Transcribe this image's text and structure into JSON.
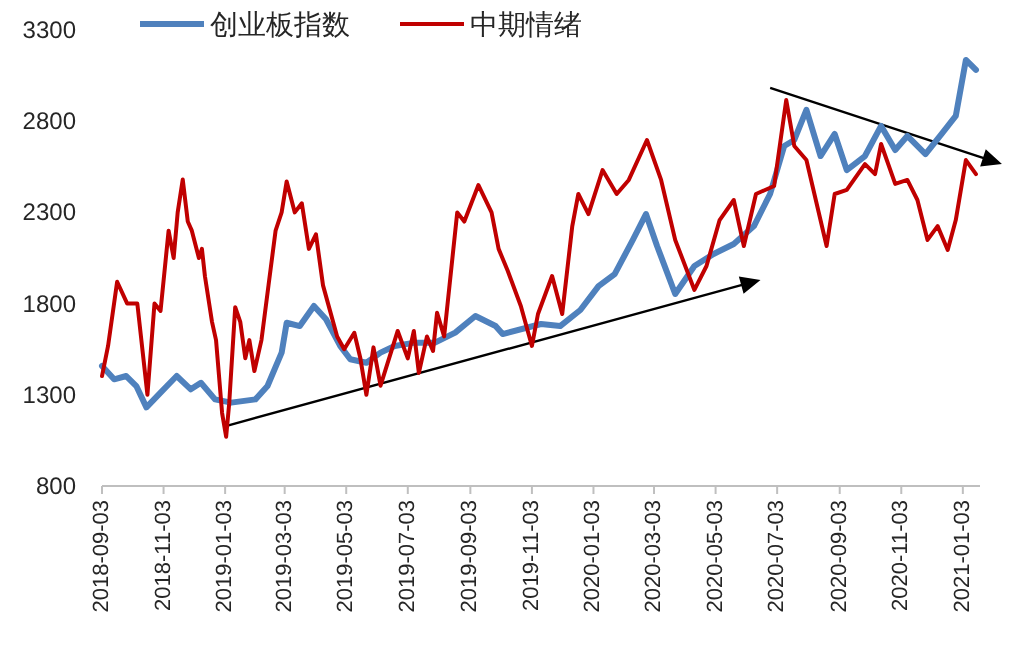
{
  "chart_data": {
    "type": "line",
    "legend": "top",
    "grid": false,
    "marker": "none",
    "line_style": "solid",
    "xlim": [
      "2018-09-03",
      "2021-01-20"
    ],
    "ylim": [
      800,
      3300
    ],
    "yticks": [
      800,
      1300,
      1800,
      2300,
      2800,
      3300
    ],
    "xticks": [
      "2018-09-03",
      "2018-11-03",
      "2019-01-03",
      "2019-03-03",
      "2019-05-03",
      "2019-07-03",
      "2019-09-03",
      "2019-11-03",
      "2020-01-03",
      "2020-03-03",
      "2020-05-03",
      "2020-07-03",
      "2020-09-03",
      "2020-11-03",
      "2021-01-03"
    ],
    "series": [
      {
        "name": "创业板指数",
        "color": "#4f81bd",
        "x": [
          "2018-09-03",
          "2018-09-15",
          "2018-09-27",
          "2018-10-07",
          "2018-10-17",
          "2018-10-31",
          "2018-11-16",
          "2018-11-30",
          "2018-12-10",
          "2018-12-24",
          "2019-01-09",
          "2019-02-02",
          "2019-02-14",
          "2019-02-28",
          "2019-03-05",
          "2019-03-18",
          "2019-04-01",
          "2019-04-13",
          "2019-04-27",
          "2019-05-07",
          "2019-05-23",
          "2019-06-06",
          "2019-06-20",
          "2019-07-10",
          "2019-07-30",
          "2019-08-19",
          "2019-09-08",
          "2019-09-28",
          "2019-10-05",
          "2019-11-12",
          "2019-12-01",
          "2019-12-21",
          "2020-01-08",
          "2020-01-24",
          "2020-02-11",
          "2020-02-24",
          "2020-03-06",
          "2020-03-24",
          "2020-04-12",
          "2020-05-01",
          "2020-05-21",
          "2020-06-10",
          "2020-06-26",
          "2020-07-10",
          "2020-07-20",
          "2020-08-01",
          "2020-08-15",
          "2020-08-29",
          "2020-09-10",
          "2020-09-28",
          "2020-10-14",
          "2020-10-28",
          "2020-11-09",
          "2020-11-27",
          "2020-12-13",
          "2020-12-27",
          "2021-01-06",
          "2021-01-16"
        ],
        "values": [
          1458,
          1385,
          1403,
          1348,
          1231,
          1312,
          1403,
          1330,
          1366,
          1275,
          1257,
          1275,
          1348,
          1531,
          1695,
          1677,
          1787,
          1714,
          1568,
          1495,
          1476,
          1531,
          1568,
          1586,
          1586,
          1641,
          1732,
          1677,
          1633,
          1688,
          1677,
          1765,
          1896,
          1962,
          2149,
          2291,
          2116,
          1853,
          2006,
          2072,
          2127,
          2225,
          2401,
          2664,
          2697,
          2862,
          2609,
          2730,
          2532,
          2609,
          2774,
          2642,
          2719,
          2620,
          2730,
          2829,
          3136,
          3081
        ]
      },
      {
        "name": "中期情绪",
        "color": "#c00000",
        "x": [
          "2018-09-03",
          "2018-09-09",
          "2018-09-18",
          "2018-09-28",
          "2018-10-08",
          "2018-10-18",
          "2018-10-25",
          "2018-10-31",
          "2018-11-08",
          "2018-11-13",
          "2018-11-17",
          "2018-11-22",
          "2018-11-27",
          "2018-12-01",
          "2018-12-08",
          "2018-12-11",
          "2018-12-14",
          "2018-12-21",
          "2018-12-25",
          "2018-12-31",
          "2019-01-04",
          "2019-01-07",
          "2019-01-13",
          "2019-01-18",
          "2019-01-23",
          "2019-01-27",
          "2019-02-01",
          "2019-02-08",
          "2019-02-15",
          "2019-02-22",
          "2019-02-28",
          "2019-03-05",
          "2019-03-13",
          "2019-03-20",
          "2019-03-27",
          "2019-04-03",
          "2019-04-10",
          "2019-04-15",
          "2019-04-24",
          "2019-05-01",
          "2019-05-11",
          "2019-05-17",
          "2019-05-23",
          "2019-05-30",
          "2019-06-06",
          "2019-06-23",
          "2019-07-03",
          "2019-07-09",
          "2019-07-14",
          "2019-07-22",
          "2019-07-28",
          "2019-08-01",
          "2019-08-08",
          "2019-08-21",
          "2019-08-28",
          "2019-09-11",
          "2019-09-24",
          "2019-10-01",
          "2019-10-10",
          "2019-10-23",
          "2019-11-03",
          "2019-11-09",
          "2019-11-23",
          "2019-12-03",
          "2019-12-13",
          "2019-12-19",
          "2019-12-29",
          "2020-01-12",
          "2020-01-26",
          "2020-02-07",
          "2020-02-25",
          "2020-03-10",
          "2020-03-24",
          "2020-04-12",
          "2020-04-24",
          "2020-05-07",
          "2020-05-21",
          "2020-05-31",
          "2020-06-12",
          "2020-06-30",
          "2020-07-12",
          "2020-07-20",
          "2020-08-01",
          "2020-08-21",
          "2020-08-29",
          "2020-09-10",
          "2020-09-28",
          "2020-10-08",
          "2020-10-14",
          "2020-10-28",
          "2020-11-09",
          "2020-11-19",
          "2020-11-29",
          "2020-12-09",
          "2020-12-19",
          "2020-12-27",
          "2021-01-06",
          "2021-01-16"
        ],
        "values": [
          1403,
          1568,
          1920,
          1800,
          1800,
          1300,
          1800,
          1760,
          2200,
          2050,
          2300,
          2480,
          2250,
          2200,
          2050,
          2100,
          1950,
          1700,
          1600,
          1200,
          1070,
          1250,
          1780,
          1700,
          1500,
          1600,
          1430,
          1600,
          1900,
          2200,
          2300,
          2470,
          2300,
          2350,
          2100,
          2180,
          1900,
          1800,
          1620,
          1550,
          1640,
          1500,
          1300,
          1560,
          1350,
          1650,
          1500,
          1650,
          1420,
          1620,
          1540,
          1750,
          1620,
          2300,
          2250,
          2450,
          2300,
          2100,
          1980,
          1787,
          1568,
          1743,
          1951,
          1743,
          2225,
          2401,
          2291,
          2532,
          2401,
          2478,
          2697,
          2478,
          2149,
          1875,
          2006,
          2258,
          2368,
          2116,
          2401,
          2445,
          2916,
          2664,
          2587,
          2116,
          2401,
          2423,
          2565,
          2510,
          2675,
          2456,
          2478,
          2368,
          2149,
          2225,
          2094,
          2258,
          2587,
          2510
        ]
      }
    ]
  }
}
